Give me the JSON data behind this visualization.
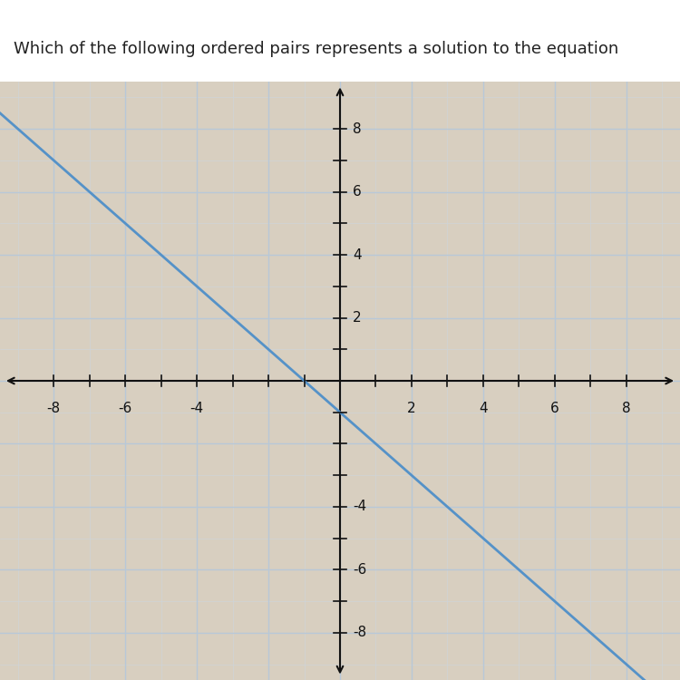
{
  "title": "Which of the following ordered pairs represents a solution to the equation",
  "title_fontsize": 13,
  "xlim": [
    -9.5,
    9.5
  ],
  "ylim": [
    -9.5,
    9.5
  ],
  "xticks_labeled": [
    -8,
    -6,
    -4,
    2,
    4,
    6,
    8
  ],
  "yticks_labeled": [
    8,
    6,
    4,
    2,
    -4,
    -6,
    -8
  ],
  "all_ticks": [
    -8,
    -7,
    -6,
    -5,
    -4,
    -3,
    -2,
    -1,
    1,
    2,
    3,
    4,
    5,
    6,
    7,
    8
  ],
  "line_color": "#5592c8",
  "line_width": 2.0,
  "slope": -1,
  "intercept": -1,
  "bg_color": "#d8cfc0",
  "grid_major_color": "#b8c8d8",
  "grid_minor_color": "#ccd5dd",
  "axis_color": "#111111",
  "tick_label_fontsize": 11,
  "title_bg": "#e8e2d8",
  "white_strip_color": "#f0ece4"
}
